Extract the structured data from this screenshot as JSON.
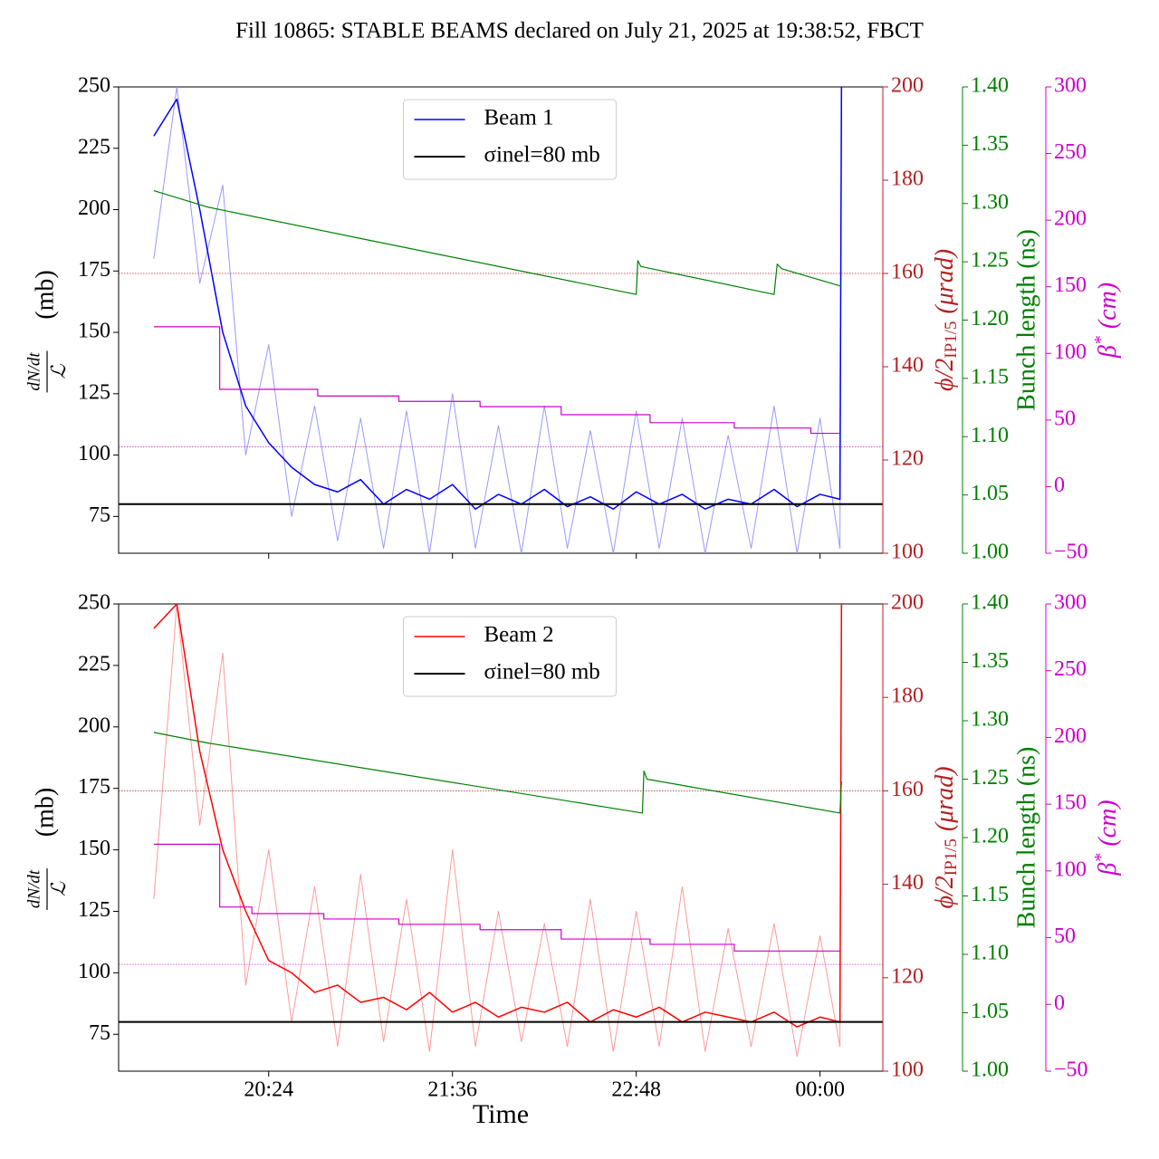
{
  "title": "Fill 10865: STABLE BEAMS declared on July 21, 2025 at 19:38:52, FBCT",
  "chart_data": [
    {
      "type": "line",
      "legend": "upper center",
      "ylabel": {
        "numerator": "dN/dt",
        "denominator": "ℒ",
        "unit": "(mb)"
      },
      "y2label": {
        "text": "ϕ/2",
        "subscript": "IP1/5",
        "unit": "(μrad)"
      },
      "y3label": "Bunch length (ns)",
      "y4label": {
        "text": "β",
        "superscript": "*",
        "unit": "(cm)"
      },
      "y2color": "#b22222",
      "y3color": "#008000",
      "y4color": "#cc00cc",
      "xlim": [
        19.42,
        24.41
      ],
      "xticks": [
        20.4,
        21.6,
        22.8,
        24.0
      ],
      "ylim": [
        60,
        250
      ],
      "yticks": [
        75,
        100,
        125,
        150,
        175,
        200,
        225,
        250
      ],
      "y2lim": [
        100,
        200
      ],
      "y2ticks": [
        100,
        120,
        140,
        160,
        180,
        200
      ],
      "y3lim": [
        1.0,
        1.4
      ],
      "y3ticks": [
        {
          "value": 1.0,
          "label": "1.00"
        },
        1.05,
        {
          "value": 1.1,
          "label": "1.10"
        },
        1.15,
        {
          "value": 1.2,
          "label": "1.20"
        },
        1.25,
        {
          "value": 1.3,
          "label": "1.30"
        },
        1.35,
        {
          "value": 1.4,
          "label": "1.40"
        }
      ],
      "y4lim": [
        -50,
        300
      ],
      "y4ticks": [
        {
          "value": -50,
          "label": "−50"
        },
        0,
        50,
        100,
        150,
        200,
        250,
        300
      ],
      "series": [
        {
          "color": "#9999ff",
          "linewidth": 1,
          "x": [
            19.65,
            19.8,
            19.95,
            20.1,
            20.25,
            20.4,
            20.55,
            20.7,
            20.85,
            21.0,
            21.15,
            21.3,
            21.45,
            21.6,
            21.75,
            21.9,
            22.05,
            22.2,
            22.35,
            22.5,
            22.65,
            22.8,
            22.95,
            23.1,
            23.25,
            23.4,
            23.55,
            23.7,
            23.85,
            24.0,
            24.13,
            24.14
          ],
          "values": [
            180,
            250,
            170,
            210,
            100,
            145,
            75,
            120,
            65,
            115,
            62,
            118,
            60,
            125,
            62,
            112,
            60,
            120,
            62,
            110,
            60,
            118,
            62,
            115,
            60,
            108,
            62,
            120,
            60,
            115,
            62,
            250
          ]
        },
        {
          "name": "Beam 1",
          "color": "#0000ff",
          "linewidth": 1.5,
          "x": [
            19.65,
            19.8,
            19.95,
            20.1,
            20.25,
            20.4,
            20.55,
            20.7,
            20.85,
            21.0,
            21.15,
            21.3,
            21.45,
            21.6,
            21.75,
            21.9,
            22.05,
            22.2,
            22.35,
            22.5,
            22.65,
            22.8,
            22.95,
            23.1,
            23.25,
            23.4,
            23.55,
            23.7,
            23.85,
            24.0,
            24.13,
            24.14
          ],
          "values": [
            230,
            245,
            200,
            150,
            120,
            105,
            95,
            88,
            85,
            90,
            80,
            86,
            82,
            88,
            78,
            84,
            80,
            86,
            79,
            83,
            78,
            85,
            80,
            84,
            78,
            82,
            80,
            86,
            79,
            84,
            82,
            250
          ]
        },
        {
          "name": "σinel=80 mb",
          "color": "#000000",
          "linewidth": 2,
          "kind": "hline",
          "values": [
            80
          ]
        },
        {
          "color": "#b22222",
          "linewidth": 0.7,
          "kind": "hline",
          "linestyle": "dotted",
          "axis": "y2",
          "values": [
            160
          ]
        },
        {
          "color": "#008000",
          "linewidth": 1.2,
          "axis": "y3",
          "x": [
            19.65,
            19.8,
            20.0,
            21.0,
            22.8,
            22.81,
            22.83,
            23.7,
            23.72,
            23.75,
            24.14
          ],
          "values": [
            1.311,
            1.305,
            1.297,
            1.27,
            1.222,
            1.251,
            1.246,
            1.222,
            1.248,
            1.244,
            1.229
          ]
        },
        {
          "color": "#cc00cc",
          "linewidth": 1.2,
          "axis": "y4",
          "drawstyle": "steps-post",
          "x": [
            19.65,
            20.02,
            20.08,
            20.72,
            21.25,
            21.78,
            22.31,
            22.89,
            23.44,
            23.94,
            24.13
          ],
          "values": [
            120,
            120,
            73,
            68,
            64,
            60,
            54,
            48,
            44,
            40,
            40
          ]
        },
        {
          "color": "#cc00cc",
          "linewidth": 0.7,
          "kind": "hline",
          "linestyle": "dotted",
          "axis": "y4",
          "values": [
            30
          ]
        }
      ]
    },
    {
      "type": "line",
      "legend": "upper center",
      "ylabel": {
        "numerator": "dN/dt",
        "denominator": "ℒ",
        "unit": "(mb)"
      },
      "y2label": {
        "text": "ϕ/2",
        "subscript": "IP1/5",
        "unit": "(μrad)"
      },
      "y3label": "Bunch length (ns)",
      "y4label": {
        "text": "β",
        "superscript": "*",
        "unit": "(cm)"
      },
      "y2color": "#b22222",
      "y3color": "#008000",
      "y4color": "#cc00cc",
      "xlabel": "Time",
      "xlim": [
        19.42,
        24.41
      ],
      "xticks": [
        {
          "value": 20.4,
          "label": "20:24"
        },
        {
          "value": 21.6,
          "label": "21:36"
        },
        {
          "value": 22.8,
          "label": "22:48"
        },
        {
          "value": 24.0,
          "label": "00:00"
        }
      ],
      "ylim": [
        60,
        250
      ],
      "yticks": [
        75,
        100,
        125,
        150,
        175,
        200,
        225,
        250
      ],
      "y2lim": [
        100,
        200
      ],
      "y2ticks": [
        100,
        120,
        140,
        160,
        180,
        200
      ],
      "y3lim": [
        1.0,
        1.4
      ],
      "y3ticks": [
        {
          "value": 1.0,
          "label": "1.00"
        },
        1.05,
        {
          "value": 1.1,
          "label": "1.10"
        },
        1.15,
        {
          "value": 1.2,
          "label": "1.20"
        },
        1.25,
        {
          "value": 1.3,
          "label": "1.30"
        },
        1.35,
        {
          "value": 1.4,
          "label": "1.40"
        }
      ],
      "y4lim": [
        -50,
        300
      ],
      "y4ticks": [
        {
          "value": -50,
          "label": "−50"
        },
        0,
        50,
        100,
        150,
        200,
        250,
        300
      ],
      "series": [
        {
          "color": "#ff9999",
          "linewidth": 1,
          "x": [
            19.65,
            19.8,
            19.95,
            20.1,
            20.25,
            20.4,
            20.55,
            20.7,
            20.85,
            21.0,
            21.15,
            21.3,
            21.45,
            21.6,
            21.75,
            21.9,
            22.05,
            22.2,
            22.35,
            22.5,
            22.65,
            22.8,
            22.95,
            23.1,
            23.25,
            23.4,
            23.55,
            23.7,
            23.85,
            24.0,
            24.13,
            24.14
          ],
          "values": [
            130,
            250,
            160,
            230,
            95,
            150,
            80,
            135,
            70,
            140,
            72,
            130,
            68,
            150,
            70,
            125,
            72,
            120,
            70,
            130,
            68,
            125,
            70,
            135,
            68,
            118,
            70,
            120,
            66,
            115,
            70,
            250
          ]
        },
        {
          "name": "Beam 2",
          "color": "#ff0000",
          "linewidth": 1.5,
          "x": [
            19.65,
            19.8,
            19.95,
            20.1,
            20.25,
            20.4,
            20.55,
            20.7,
            20.85,
            21.0,
            21.15,
            21.3,
            21.45,
            21.6,
            21.75,
            21.9,
            22.05,
            22.2,
            22.35,
            22.5,
            22.65,
            22.8,
            22.95,
            23.1,
            23.25,
            23.4,
            23.55,
            23.7,
            23.85,
            24.0,
            24.13,
            24.14
          ],
          "values": [
            240,
            250,
            190,
            150,
            125,
            105,
            100,
            92,
            95,
            88,
            90,
            85,
            92,
            84,
            88,
            82,
            86,
            84,
            88,
            80,
            85,
            82,
            86,
            80,
            84,
            82,
            80,
            84,
            78,
            82,
            80,
            250
          ]
        },
        {
          "name": "σinel=80 mb",
          "color": "#000000",
          "linewidth": 2,
          "kind": "hline",
          "values": [
            80
          ]
        },
        {
          "color": "#b22222",
          "linewidth": 0.7,
          "kind": "hline",
          "linestyle": "dotted",
          "axis": "y2",
          "values": [
            160
          ]
        },
        {
          "color": "#008000",
          "linewidth": 1.2,
          "axis": "y3",
          "x": [
            19.65,
            20.0,
            22.84,
            22.85,
            22.87,
            24.13,
            24.14
          ],
          "values": [
            1.29,
            1.281,
            1.221,
            1.257,
            1.25,
            1.221,
            1.248
          ]
        },
        {
          "color": "#cc00cc",
          "linewidth": 1.2,
          "axis": "y4",
          "drawstyle": "steps-post",
          "x": [
            19.65,
            20.02,
            20.08,
            20.29,
            20.76,
            21.25,
            21.78,
            22.31,
            22.89,
            23.44,
            24.13
          ],
          "values": [
            120,
            120,
            73,
            68,
            64,
            60,
            56,
            49,
            45,
            40,
            40
          ]
        },
        {
          "color": "#cc00cc",
          "linewidth": 0.7,
          "kind": "hline",
          "linestyle": "dotted",
          "axis": "y4",
          "values": [
            30
          ]
        }
      ]
    }
  ]
}
